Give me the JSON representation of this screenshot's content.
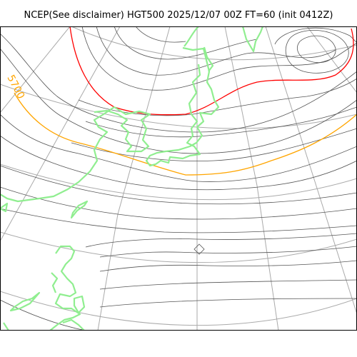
{
  "title": "NCEP(See disclaimer) HGT500 2025/12/07 00Z FT=60 (init 0412Z)",
  "contour_label": "5700",
  "colors": {
    "background": "#ffffff",
    "frame": "#000000",
    "graticule": "#aaaaaa",
    "contour": "#555555",
    "contour_5700": "#ffa500",
    "contour_5400": "#ff0000",
    "coastline": "#90ee90"
  }
}
